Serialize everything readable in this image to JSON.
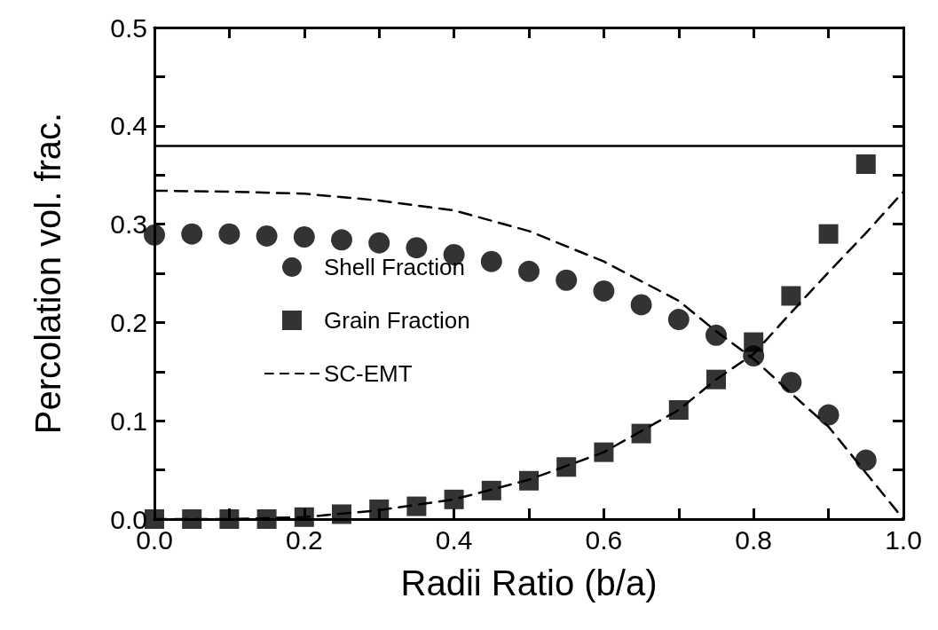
{
  "chart_data": {
    "type": "scatter",
    "xlabel": "Radii Ratio (b/a)",
    "ylabel": "Percolation vol. frac.",
    "xlim": [
      0,
      1
    ],
    "ylim": [
      0,
      0.5
    ],
    "xticks": [
      {
        "value": 0,
        "label": "0.0"
      },
      {
        "value": 0.1,
        "label": null
      },
      0.2,
      {
        "value": 0.3,
        "label": null
      },
      0.4,
      {
        "value": 0.5,
        "label": null
      },
      0.6,
      {
        "value": 0.7,
        "label": null
      },
      0.8,
      {
        "value": 0.9,
        "label": null
      },
      {
        "value": 1,
        "label": "1.0"
      }
    ],
    "yticks": [
      {
        "value": 0,
        "label": "0.0"
      },
      {
        "value": 0.05,
        "label": null
      },
      0.1,
      {
        "value": 0.15,
        "label": null
      },
      0.2,
      {
        "value": 0.25,
        "label": null
      },
      0.3,
      {
        "value": 0.35,
        "label": null
      },
      0.4,
      {
        "value": 0.45,
        "label": null
      },
      0.5
    ],
    "grid": false,
    "legend": "left",
    "ref_lines": [
      {
        "axis": "y",
        "value": 0.38,
        "color": "#000000",
        "line_style": "solid"
      }
    ],
    "series": [
      {
        "name": "Shell Fraction",
        "type": "scatter",
        "marker": "circle",
        "color": "#000000",
        "x": [
          0,
          0.05,
          0.1,
          0.15,
          0.2,
          0.25,
          0.3,
          0.35,
          0.4,
          0.45,
          0.5,
          0.55,
          0.6,
          0.65,
          0.7,
          0.75,
          0.8,
          0.85,
          0.9,
          0.95
        ],
        "values": [
          0.289,
          0.29,
          0.29,
          0.288,
          0.287,
          0.284,
          0.281,
          0.276,
          0.269,
          0.262,
          0.252,
          0.243,
          0.232,
          0.218,
          0.203,
          0.187,
          0.166,
          0.139,
          0.106,
          0.06
        ]
      },
      {
        "name": "Grain Fraction",
        "type": "scatter",
        "marker": "square",
        "color": "#000000",
        "x": [
          0,
          0.05,
          0.1,
          0.15,
          0.2,
          0.25,
          0.3,
          0.35,
          0.4,
          0.45,
          0.5,
          0.55,
          0.6,
          0.65,
          0.7,
          0.75,
          0.8,
          0.85,
          0.9,
          0.95
        ],
        "values": [
          0,
          0,
          0,
          0,
          0.002,
          0.005,
          0.01,
          0.013,
          0.02,
          0.029,
          0.039,
          0.053,
          0.068,
          0.087,
          0.111,
          0.142,
          0.18,
          0.227,
          0.29,
          0.361
        ]
      },
      {
        "name": "SC-EMT",
        "type": "line",
        "line_style": "dashed",
        "marker": "none",
        "color": "#000000",
        "x": [
          0,
          0.1,
          0.2,
          0.3,
          0.4,
          0.5,
          0.6,
          0.7,
          0.75,
          0.8,
          0.85,
          0.9,
          0.95,
          1.0
        ],
        "values": [
          0.334,
          0.333,
          0.331,
          0.324,
          0.314,
          0.293,
          0.262,
          0.222,
          0.191,
          0.163,
          0.128,
          0.094,
          0.047,
          0
        ]
      },
      {
        "type": "line",
        "line_style": "dashed",
        "marker": "none",
        "color": "#000000",
        "x": [
          0,
          0.1,
          0.2,
          0.3,
          0.4,
          0.5,
          0.6,
          0.7,
          0.75,
          0.8,
          0.85,
          0.9,
          0.95,
          1.0
        ],
        "values": [
          0,
          0,
          0.002,
          0.009,
          0.02,
          0.04,
          0.068,
          0.111,
          0.142,
          0.168,
          0.21,
          0.251,
          0.291,
          0.333
        ]
      }
    ]
  }
}
